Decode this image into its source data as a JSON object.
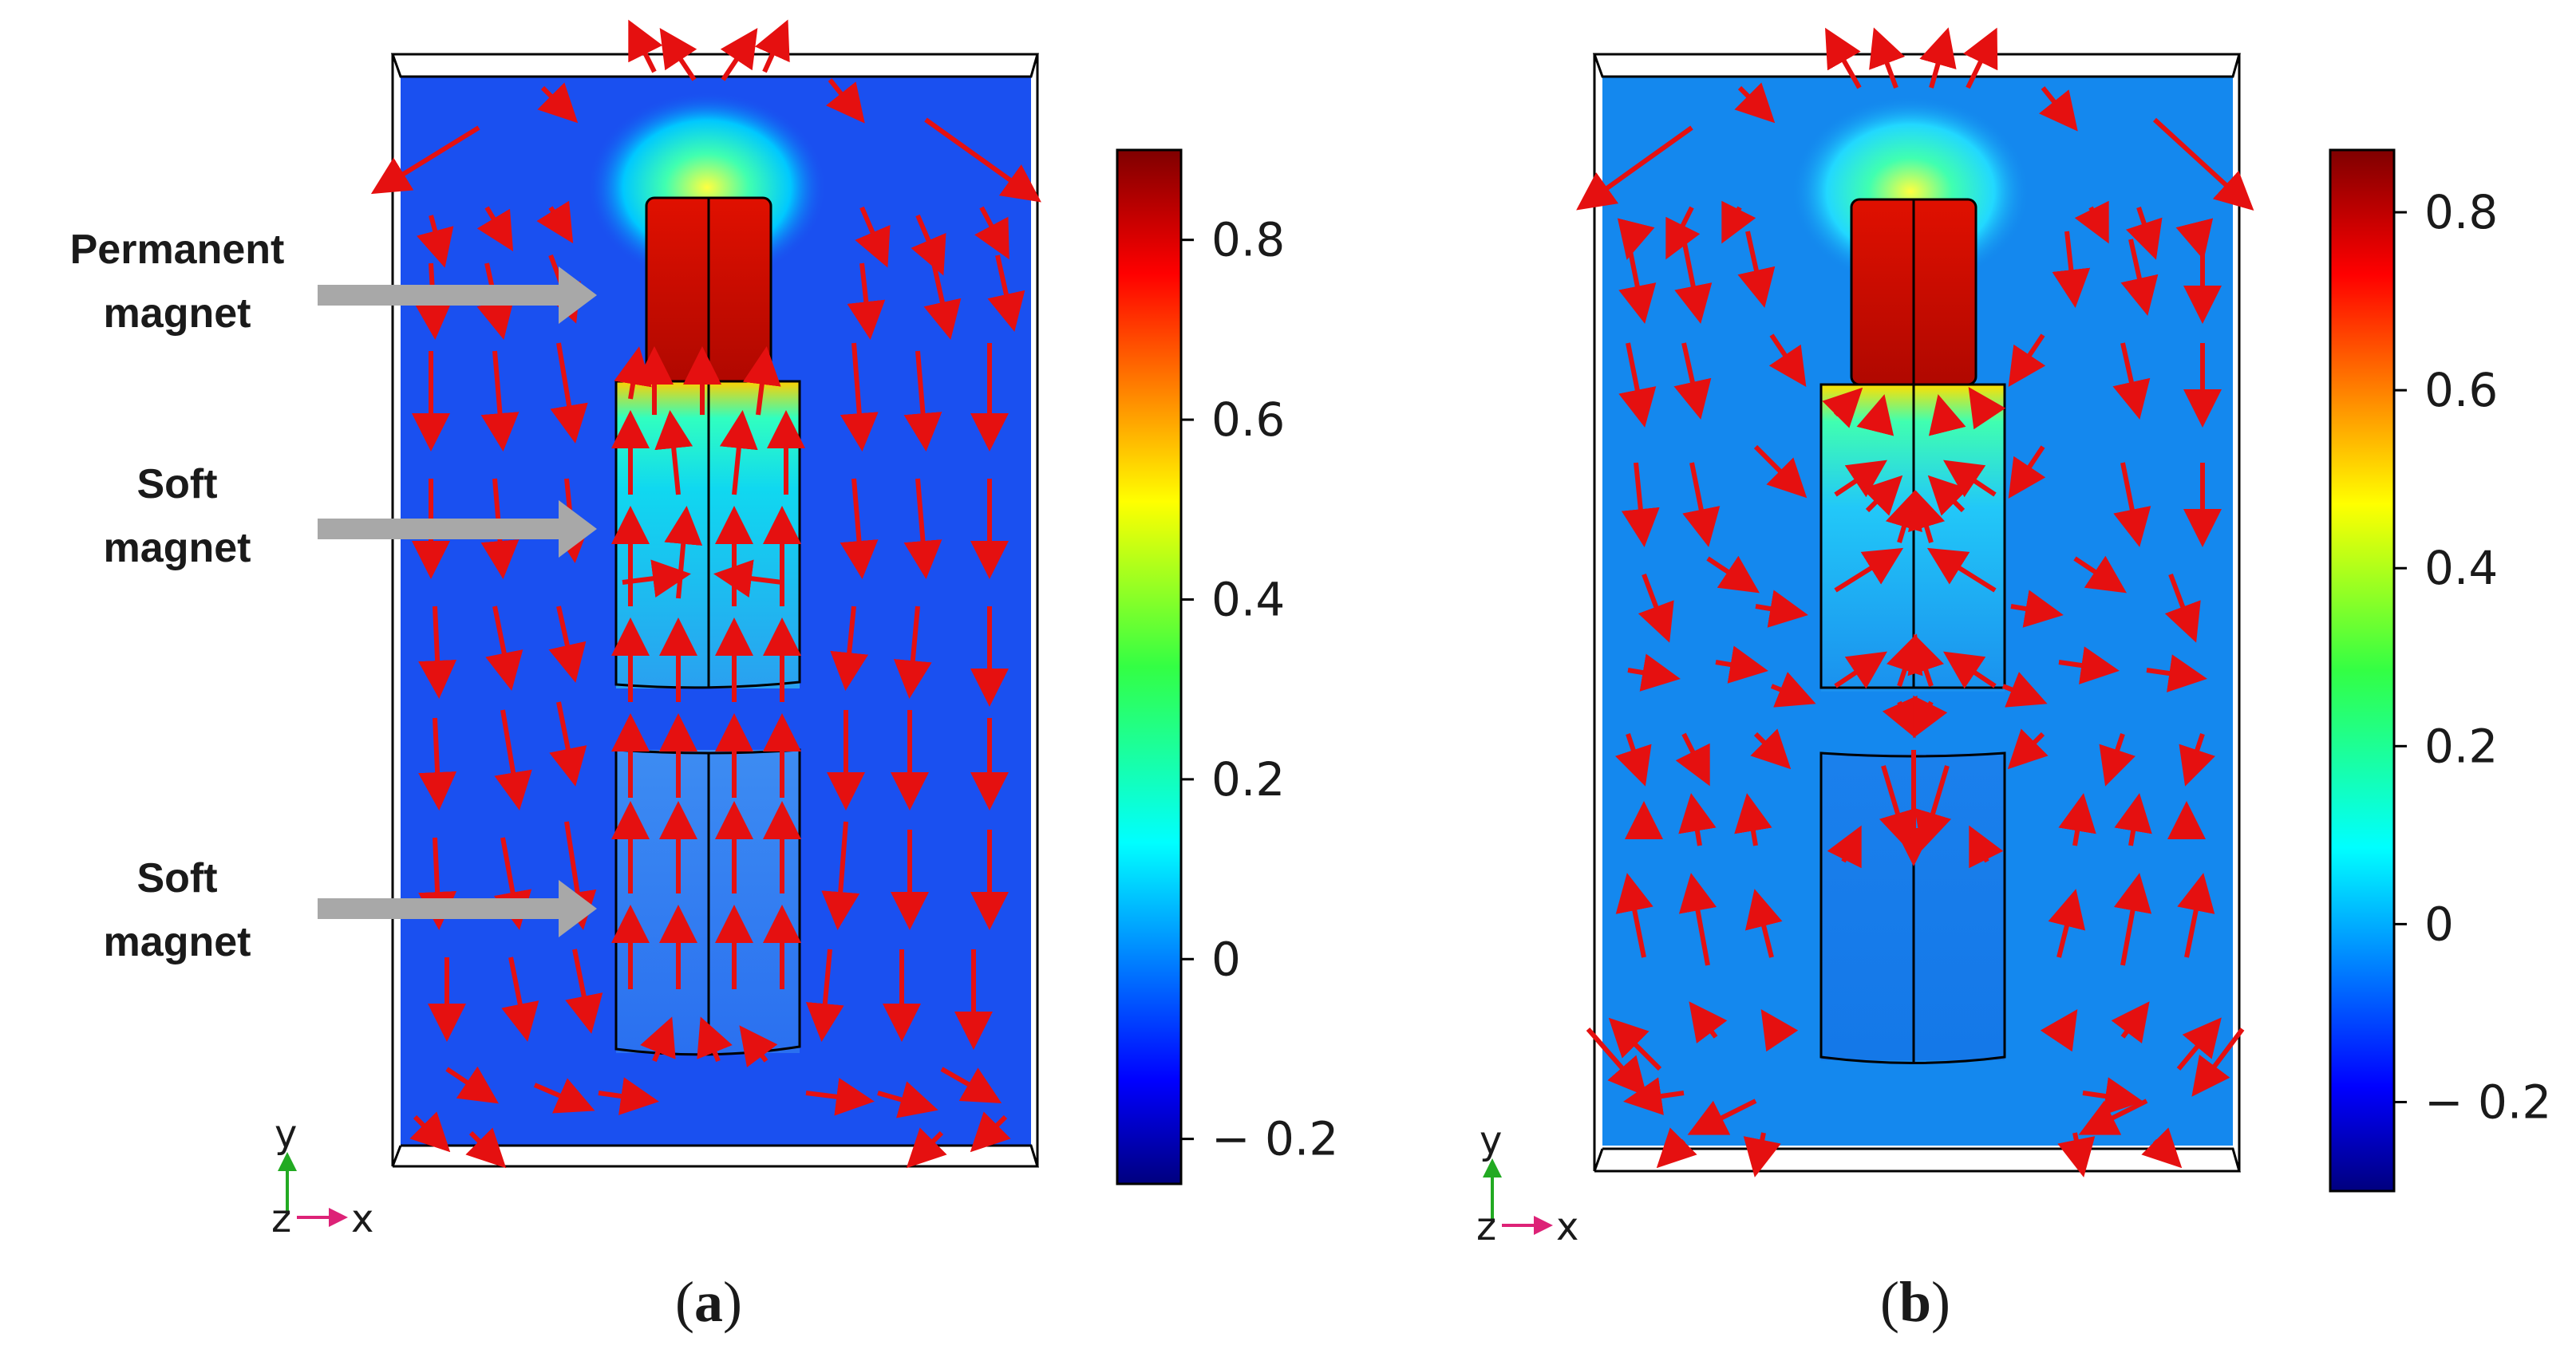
{
  "panels": [
    {
      "id": "a",
      "caption_open": "(",
      "caption_letter": "a",
      "caption_close": ")",
      "annotations": [
        {
          "line1": "Permanent",
          "line2": "magnet"
        },
        {
          "line1": "Soft",
          "line2": "magnet"
        },
        {
          "line1": "Soft",
          "line2": "magnet"
        }
      ],
      "colorbar": {
        "min": -0.25,
        "max": 0.9,
        "ticks": [
          {
            "value": 0.8,
            "label": "0.8"
          },
          {
            "value": 0.6,
            "label": "0.6"
          },
          {
            "value": 0.4,
            "label": "0.4"
          },
          {
            "value": 0.2,
            "label": "0.2"
          },
          {
            "value": 0.0,
            "label": "0"
          },
          {
            "value": -0.2,
            "label": "− 0.2"
          }
        ]
      },
      "axes": {
        "y": "y",
        "z": "z",
        "x": "x"
      }
    },
    {
      "id": "b",
      "caption_open": "(",
      "caption_letter": "b",
      "caption_close": ")",
      "annotations": [],
      "colorbar": {
        "min": -0.3,
        "max": 0.87,
        "ticks": [
          {
            "value": 0.8,
            "label": "0.8"
          },
          {
            "value": 0.6,
            "label": "0.6"
          },
          {
            "value": 0.4,
            "label": "0.4"
          },
          {
            "value": 0.2,
            "label": "0.2"
          },
          {
            "value": 0.0,
            "label": "0"
          },
          {
            "value": -0.2,
            "label": "− 0.2"
          }
        ]
      },
      "axes": {
        "y": "y",
        "z": "z",
        "x": "x"
      }
    }
  ],
  "colors": {
    "background_a": "#1a50f0",
    "background_b": "#1488ee",
    "arrow": "#e51010",
    "annotation_arrow": "#a8a8a8",
    "outline": "#000000",
    "axis_y": "#22aa22",
    "axis_x": "#dd2277"
  }
}
